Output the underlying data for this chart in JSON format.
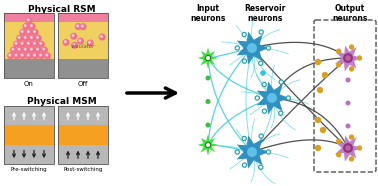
{
  "bg_color": "#ffffff",
  "rsm_title": "Physical RSM",
  "msm_title": "Physical MSM",
  "on_label": "On",
  "off_label": "Off",
  "pre_label": "Pre-switching",
  "post_label": "Post-switching",
  "input_label": "Input\nneurons",
  "reservoir_label": "Reservoir\nneurons",
  "output_label": "Output\nneurons",
  "pink_top": "#F080A0",
  "yellow_color": "#F0D060",
  "gray_bottom": "#909090",
  "orange_color": "#F5A020",
  "gray_layer": "#B8B8B8",
  "sphere_pink": "#F07090",
  "green_neuron": "#40DD40",
  "blue_neuron": "#3090C0",
  "cyan_conn": "#30C8D8",
  "purple_neuron": "#C080C8",
  "dark_conn": "#303030",
  "dot_green": "#40BB40",
  "dot_purple": "#B870C0",
  "teal_syn": "#20A0A8",
  "gold_dot": "#D8A020"
}
